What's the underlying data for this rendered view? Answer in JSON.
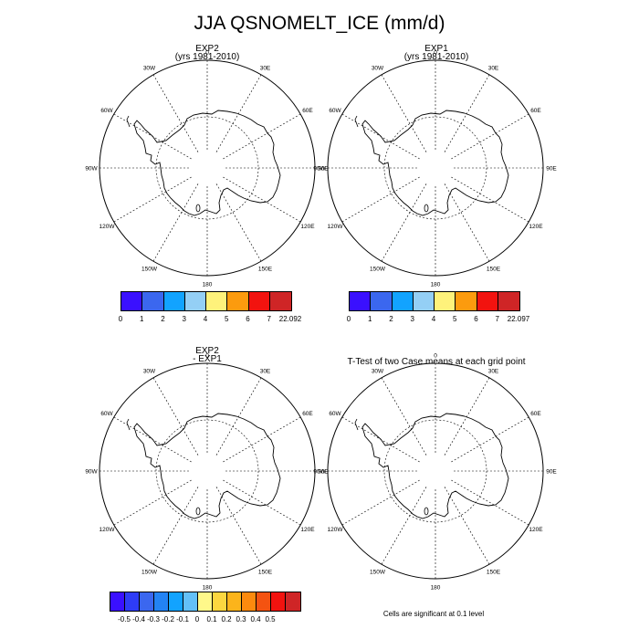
{
  "figure_title": "JJA QSNOMELT_ICE (mm/d)",
  "panels": [
    {
      "id": "exp2",
      "title_line1": "EXP2",
      "title_line2": "(yrs 1981-2010)"
    },
    {
      "id": "exp1",
      "title_line1": "EXP1",
      "title_line2": "(yrs 1981-2010)"
    },
    {
      "id": "diff",
      "title_line1": "EXP2",
      "title_line2": " - EXP1"
    },
    {
      "id": "ttest",
      "title_line1": "T-Test of two Case means at each grid point",
      "title_line2": ""
    }
  ],
  "longitude_labels": [
    "0",
    "30E",
    "60E",
    "90E",
    "120E",
    "150E",
    "180",
    "150W",
    "120W",
    "90W",
    "60W",
    "30W"
  ],
  "colorbars": {
    "exp2": {
      "colors": [
        "#3a10ff",
        "#3b67ef",
        "#12a3ff",
        "#94cff5",
        "#fef27b",
        "#fc9b0e",
        "#f2130f",
        "#cf2526"
      ],
      "labels": [
        "0",
        "1",
        "2",
        "3",
        "4",
        "5",
        "6",
        "7",
        "22.092"
      ]
    },
    "exp1": {
      "colors": [
        "#3a10ff",
        "#3b67ef",
        "#12a3ff",
        "#94cff5",
        "#fef27b",
        "#fc9b0e",
        "#f2130f",
        "#cf2526"
      ],
      "labels": [
        "0",
        "1",
        "2",
        "3",
        "4",
        "5",
        "6",
        "7",
        "22.097"
      ]
    },
    "diff": {
      "colors": [
        "#3a10ff",
        "#2e3cf6",
        "#3b67ef",
        "#2383f4",
        "#12a3ff",
        "#63c0f8",
        "#fff88a",
        "#fcd740",
        "#fcb41b",
        "#fc8a0e",
        "#f45311",
        "#f2130f",
        "#cf2526"
      ],
      "labels": [
        "-0.5",
        "-0.4",
        "-0.3",
        "-0.2",
        "-0.1",
        "0",
        "0.1",
        "0.2",
        "0.3",
        "0.4",
        "0.5"
      ]
    }
  },
  "footnote": "Cells are significant at 0.1 level"
}
